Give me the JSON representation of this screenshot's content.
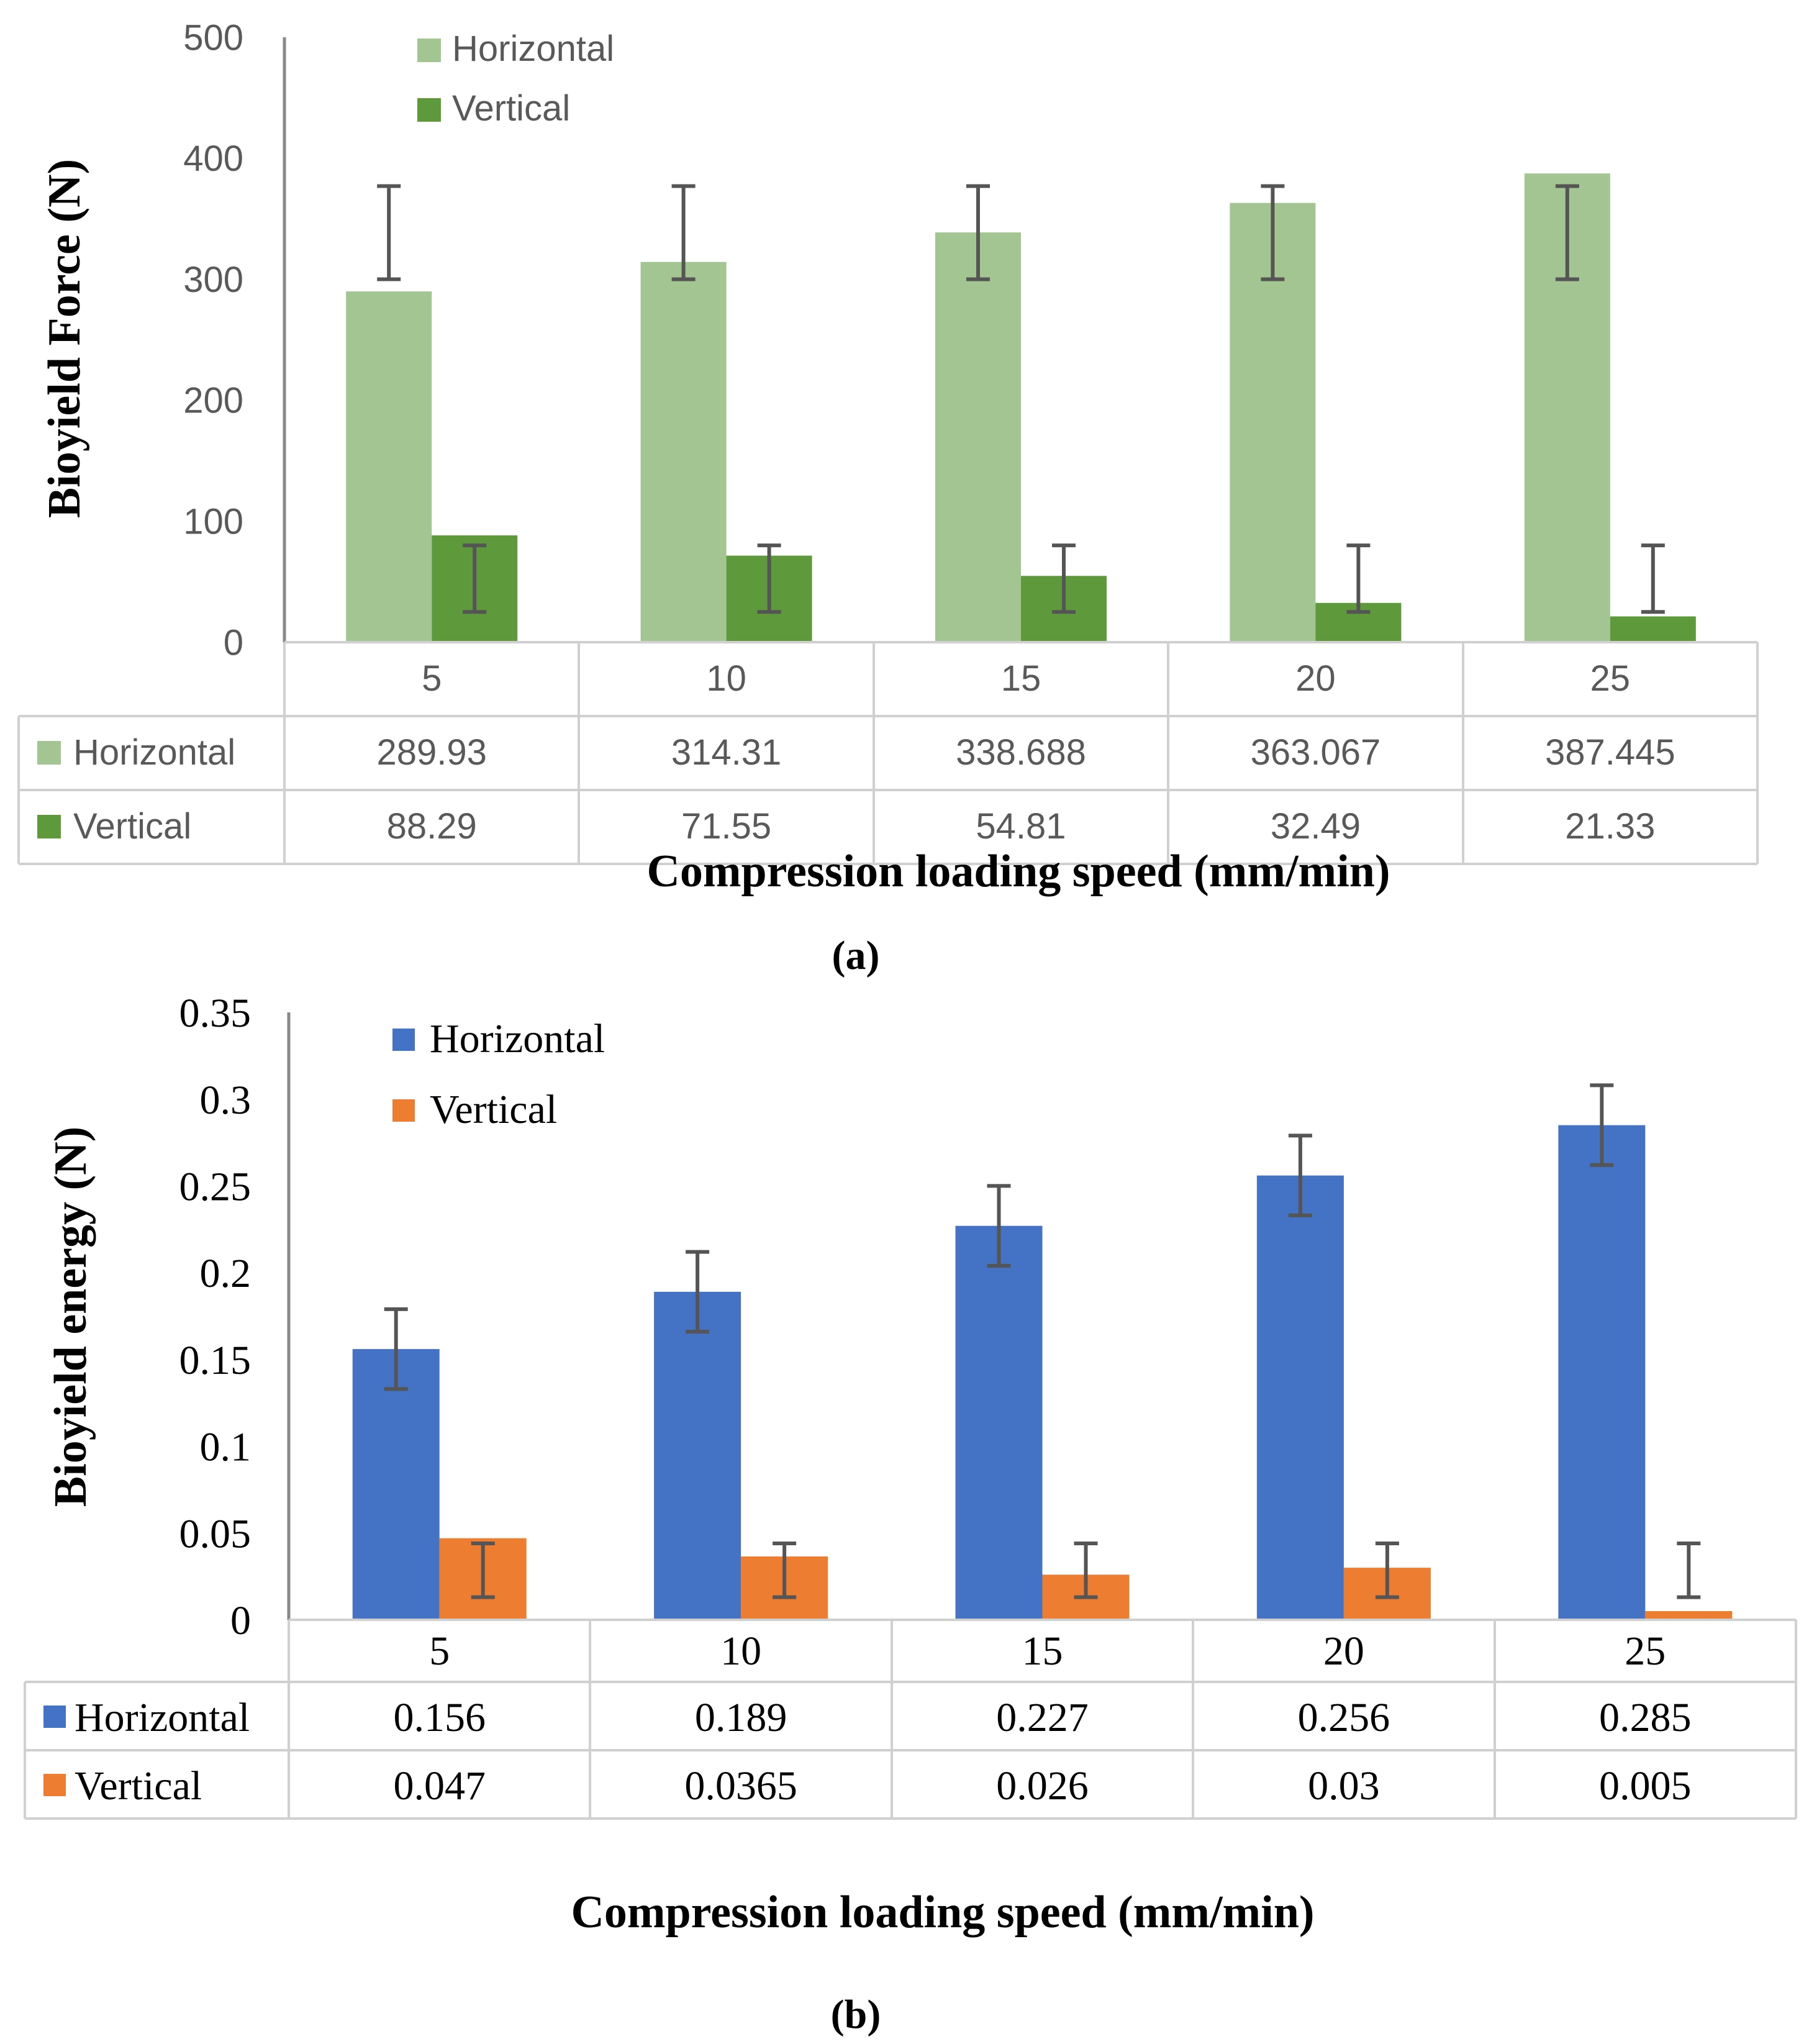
{
  "chart_data": [
    {
      "type": "bar",
      "panel_label": "(a)",
      "title": "",
      "xlabel": "Compression loading speed (mm/min)",
      "ylabel": "Bioyield Force (N)",
      "ylim": [
        0,
        500
      ],
      "yticks": [
        "0",
        "100",
        "200",
        "300",
        "400",
        "500"
      ],
      "categories": [
        "5",
        "10",
        "15",
        "20",
        "25"
      ],
      "series": [
        {
          "name": "Horizontal",
          "color": "#a3c591",
          "values": [
            289.93,
            314.31,
            338.688,
            363.067,
            387.445
          ],
          "labels": [
            "289.93",
            "314.31",
            "338.688",
            "363.067",
            "387.445"
          ],
          "errors": [
            [
              300,
              377
            ],
            [
              300,
              377
            ],
            [
              300,
              377
            ],
            [
              300,
              377
            ],
            [
              300,
              377
            ]
          ]
        },
        {
          "name": "Vertical",
          "color": "#5e9a3c",
          "values": [
            88.29,
            71.55,
            54.81,
            32.49,
            21.33
          ],
          "labels": [
            "88.29",
            "71.55",
            "54.81",
            "32.49",
            "21.33"
          ],
          "errors": [
            [
              25,
              80
            ],
            [
              25,
              80
            ],
            [
              25,
              80
            ],
            [
              25,
              80
            ],
            [
              25,
              80
            ]
          ]
        }
      ],
      "legend": "top-left",
      "data_table": true,
      "error_bar_color": "#555555"
    },
    {
      "type": "bar",
      "panel_label": "(b)",
      "title": "",
      "xlabel": "Compression loading speed (mm/min)",
      "ylabel": "Bioyield energy (N)",
      "ylim": [
        0,
        0.35
      ],
      "yticks": [
        "0",
        "0.05",
        "0.1",
        "0.15",
        "0.2",
        "0.25",
        "0.3",
        "0.35"
      ],
      "categories": [
        "5",
        "10",
        "15",
        "20",
        "25"
      ],
      "series": [
        {
          "name": "Horizontal",
          "color": "#4472c4",
          "values": [
            0.156,
            0.189,
            0.227,
            0.256,
            0.285
          ],
          "labels": [
            "0.156",
            "0.189",
            "0.227",
            "0.256",
            "0.285"
          ],
          "errors": [
            [
              0.133,
              0.179
            ],
            [
              0.166,
              0.212
            ],
            [
              0.204,
              0.25
            ],
            [
              0.233,
              0.279
            ],
            [
              0.262,
              0.308
            ]
          ]
        },
        {
          "name": "Vertical",
          "color": "#ed7d31",
          "values": [
            0.047,
            0.0365,
            0.026,
            0.03,
            0.005
          ],
          "labels": [
            "0.047",
            "0.0365",
            "0.026",
            "0.03",
            "0.005"
          ],
          "errors": [
            [
              0.013,
              0.044
            ],
            [
              0.013,
              0.044
            ],
            [
              0.013,
              0.044
            ],
            [
              0.013,
              0.044
            ],
            [
              0.013,
              0.044
            ]
          ]
        }
      ],
      "legend": "top-left",
      "data_table": true,
      "error_bar_color": "#555555"
    }
  ]
}
